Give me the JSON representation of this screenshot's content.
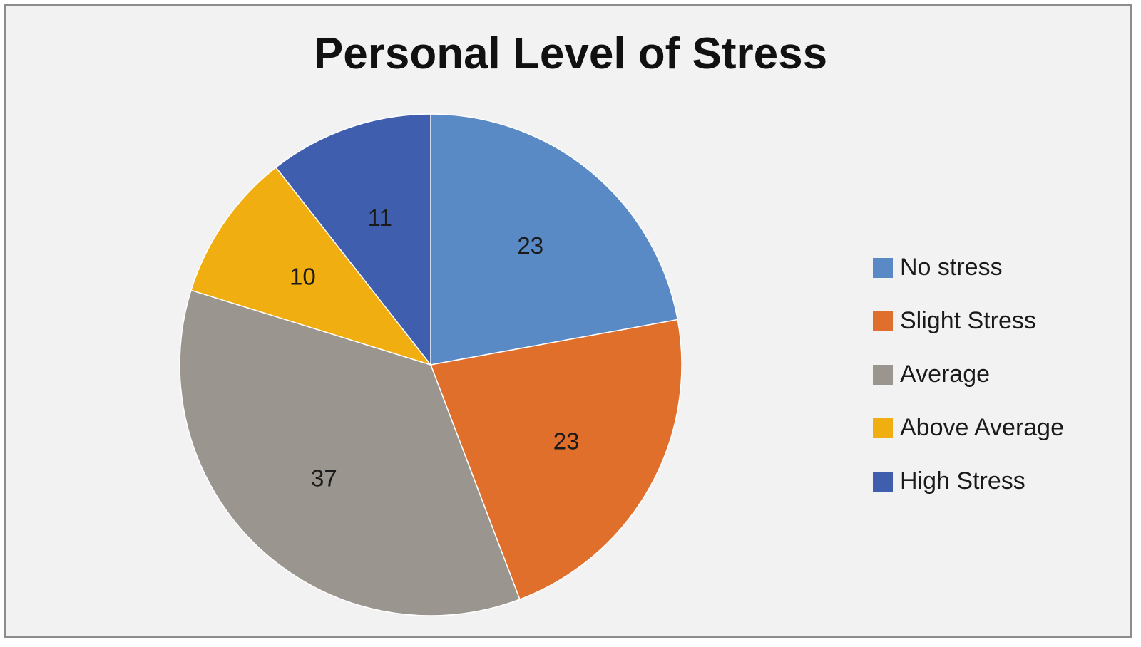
{
  "chart_data": {
    "type": "pie",
    "title": "Personal Level of Stress",
    "categories": [
      "No stress",
      "Slight Stress",
      "Average",
      "Above Average",
      "High Stress"
    ],
    "values": [
      23,
      23,
      37,
      10,
      11
    ],
    "colors": [
      "#5a8ac6",
      "#e06f2b",
      "#9b958f",
      "#f0ae10",
      "#3f5fae"
    ],
    "data_labels": [
      "23",
      "23",
      "37",
      "10",
      "11"
    ],
    "start_angle_deg": 0,
    "direction": "clockwise",
    "legend_position": "right"
  }
}
